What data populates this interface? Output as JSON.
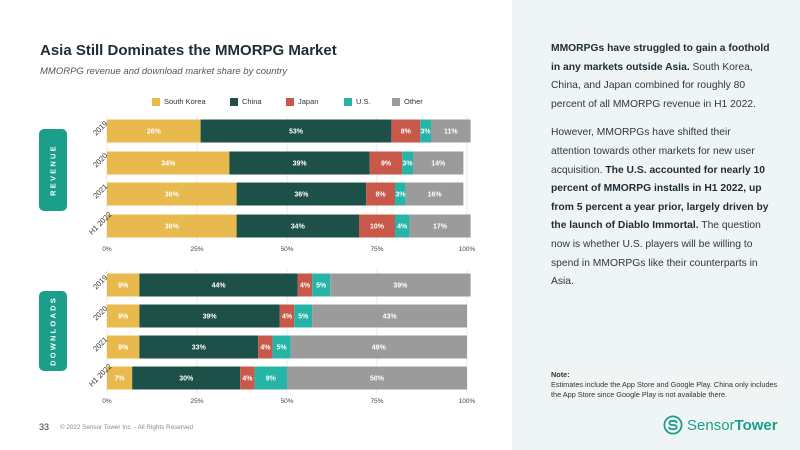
{
  "title": "Asia Still Dominates the MMORPG Market",
  "subtitle": "MMORPG revenue and download market share by country",
  "legend": [
    {
      "name": "South Korea",
      "color": "#e8b94d"
    },
    {
      "name": "China",
      "color": "#1d5049"
    },
    {
      "name": "Japan",
      "color": "#c8594a"
    },
    {
      "name": "U.S.",
      "color": "#25b4a7"
    },
    {
      "name": "Other",
      "color": "#9b9b9b"
    }
  ],
  "sections": {
    "revenue": "REVENUE",
    "downloads": "DOWNLOADS"
  },
  "chart_data": [
    {
      "type": "bar",
      "orientation": "horizontal",
      "stacked": true,
      "section": "REVENUE",
      "categories": [
        "2019",
        "2020",
        "2021",
        "H1 2022"
      ],
      "series": [
        {
          "name": "South Korea",
          "values": [
            26,
            34,
            36,
            36
          ],
          "labels": [
            "26%",
            "34%",
            "36%",
            "36%"
          ]
        },
        {
          "name": "China",
          "values": [
            53,
            39,
            36,
            34
          ],
          "labels": [
            "53%",
            "39%",
            "36%",
            "34%"
          ]
        },
        {
          "name": "Japan",
          "values": [
            8,
            9,
            8,
            10
          ],
          "labels": [
            "8%",
            "9%",
            "8%",
            "10%"
          ]
        },
        {
          "name": "U.S.",
          "values": [
            3,
            3,
            3,
            4
          ],
          "labels": [
            "3%",
            "3%",
            "3%",
            "4%"
          ]
        },
        {
          "name": "Other",
          "values": [
            11,
            14,
            16,
            17
          ],
          "labels": [
            "11%",
            "14%",
            "16%",
            "17%"
          ]
        }
      ],
      "xlim": [
        0,
        100
      ],
      "xticks": [
        "0%",
        "25%",
        "50%",
        "75%",
        "100%"
      ]
    },
    {
      "type": "bar",
      "orientation": "horizontal",
      "stacked": true,
      "section": "DOWNLOADS",
      "categories": [
        "2019",
        "2020",
        "2021",
        "H1 2022"
      ],
      "series": [
        {
          "name": "South Korea",
          "values": [
            9,
            9,
            9,
            7
          ],
          "labels": [
            "9%",
            "9%",
            "9%",
            "7%"
          ]
        },
        {
          "name": "China",
          "values": [
            44,
            39,
            33,
            30
          ],
          "labels": [
            "44%",
            "39%",
            "33%",
            "30%"
          ]
        },
        {
          "name": "Japan",
          "values": [
            4,
            4,
            4,
            4
          ],
          "labels": [
            "4%",
            "4%",
            "4%",
            "4%"
          ]
        },
        {
          "name": "U.S.",
          "values": [
            5,
            5,
            5,
            9
          ],
          "labels": [
            "5%",
            "5%",
            "5%",
            "9%"
          ]
        },
        {
          "name": "Other",
          "values": [
            39,
            43,
            49,
            50
          ],
          "labels": [
            "39%",
            "43%",
            "49%",
            "50%"
          ]
        }
      ],
      "xlim": [
        0,
        100
      ],
      "xticks": [
        "0%",
        "25%",
        "50%",
        "75%",
        "100%"
      ]
    }
  ],
  "panel": {
    "p1_bold": "MMORPGs have struggled to gain a foothold in any markets outside Asia.",
    "p1_rest": " South Korea, China, and Japan combined for roughly 80 percent of all MMORPG revenue in H1 2022.",
    "p2_start": "However, MMORPGs have shifted their attention towards other markets for new user acquisition. ",
    "p2_bold": "The U.S. accounted for nearly 10 percent of MMORPG installs in H1 2022, up from 5 percent a year prior, largely driven by the launch of Diablo Immortal.",
    "p2_end": " The question now is whether U.S. players will be willing to spend in MMORPGs like their counterparts in Asia."
  },
  "note": {
    "title": "Note:",
    "text": "Estimates include the App Store and Google Play. China only includes the App Store since Google Play is not available there."
  },
  "logo": {
    "part1": "Sensor",
    "part2": "Tower"
  },
  "footer": {
    "page_number": "33",
    "copyright": "© 2022 Sensor Tower Inc. - All Rights Reserved"
  }
}
